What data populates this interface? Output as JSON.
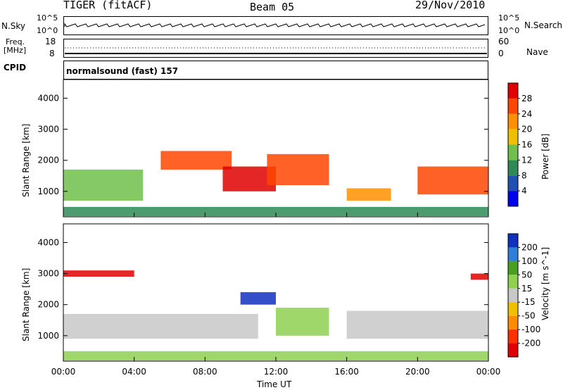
{
  "header": {
    "radar": "TIGER (fitACF)",
    "beam": "Beam 05",
    "date": "29/Nov/2010"
  },
  "summary": {
    "nsky_label": "N.Sky",
    "nsky_ticks": [
      "10^5",
      "10^0"
    ],
    "nsearch_label": "N.Search",
    "freq_label": "Freq.",
    "freq_unit": "[MHz]",
    "freq_ticks": [
      "18",
      "8"
    ],
    "nave_label": "Nave",
    "nave_ticks": [
      "60",
      "0"
    ],
    "cpid_label": "CPID",
    "cpid_value": "normalsound (fast) 157"
  },
  "chart_data": [
    {
      "type": "heatmap",
      "name": "power",
      "ylabel": "Slant Range [km]",
      "yticks": [
        "4000",
        "3000",
        "2000",
        "1000"
      ],
      "ylim": [
        180,
        4600
      ],
      "colorbar_label": "Power [dB]",
      "colorbar_ticks": [
        "28",
        "24",
        "20",
        "16",
        "12",
        "8",
        "4"
      ],
      "colors": [
        "#0000ee",
        "#2050b0",
        "#2e8b57",
        "#6fbf4a",
        "#f0c000",
        "#ff9000",
        "#ff4500",
        "#e00000"
      ],
      "bands": [
        {
          "t0": 0.0,
          "t1": 24.0,
          "r0": 200,
          "r1": 500,
          "level": 2
        },
        {
          "t0": 0.0,
          "t1": 4.5,
          "r0": 700,
          "r1": 1700,
          "level": 3
        },
        {
          "t0": 5.5,
          "t1": 9.5,
          "r0": 1700,
          "r1": 2300,
          "level": 6
        },
        {
          "t0": 9.0,
          "t1": 12.0,
          "r0": 1000,
          "r1": 1800,
          "level": 7
        },
        {
          "t0": 11.5,
          "t1": 15.0,
          "r0": 1200,
          "r1": 2200,
          "level": 6
        },
        {
          "t0": 16.0,
          "t1": 18.5,
          "r0": 700,
          "r1": 1100,
          "level": 5
        },
        {
          "t0": 20.0,
          "t1": 24.0,
          "r0": 900,
          "r1": 1800,
          "level": 6
        }
      ]
    },
    {
      "type": "heatmap",
      "name": "velocity",
      "ylabel": "Slant Range [km]",
      "yticks": [
        "4000",
        "3000",
        "2000",
        "1000"
      ],
      "ylim": [
        180,
        4600
      ],
      "colorbar_label": "Velocity [m s^-1]",
      "colorbar_ticks": [
        "200",
        "100",
        "50",
        "15",
        "-15",
        "-50",
        "-100",
        "-200"
      ],
      "colors": [
        "#1030c0",
        "#2f7fd8",
        "#49a020",
        "#8fd050",
        "#c8c8c8",
        "#f0c000",
        "#ff8c00",
        "#ff3000",
        "#e00000"
      ],
      "bands": [
        {
          "t0": 0.0,
          "t1": 24.0,
          "r0": 200,
          "r1": 500,
          "level": 3
        },
        {
          "t0": 0.0,
          "t1": 4.0,
          "r0": 2900,
          "r1": 3100,
          "level": 8
        },
        {
          "t0": 0.0,
          "t1": 11.0,
          "r0": 900,
          "r1": 1700,
          "level": 4
        },
        {
          "t0": 10.0,
          "t1": 12.0,
          "r0": 2000,
          "r1": 2400,
          "level": 0
        },
        {
          "t0": 12.0,
          "t1": 15.0,
          "r0": 1000,
          "r1": 1900,
          "level": 3
        },
        {
          "t0": 16.0,
          "t1": 24.0,
          "r0": 900,
          "r1": 1800,
          "level": 4
        },
        {
          "t0": 23.0,
          "t1": 24.0,
          "r0": 2800,
          "r1": 3000,
          "level": 8
        }
      ]
    }
  ],
  "xaxis": {
    "label": "Time UT",
    "ticks": [
      "00:00",
      "04:00",
      "08:00",
      "12:00",
      "16:00",
      "20:00",
      "00:00"
    ],
    "xlim": [
      0,
      24
    ]
  }
}
